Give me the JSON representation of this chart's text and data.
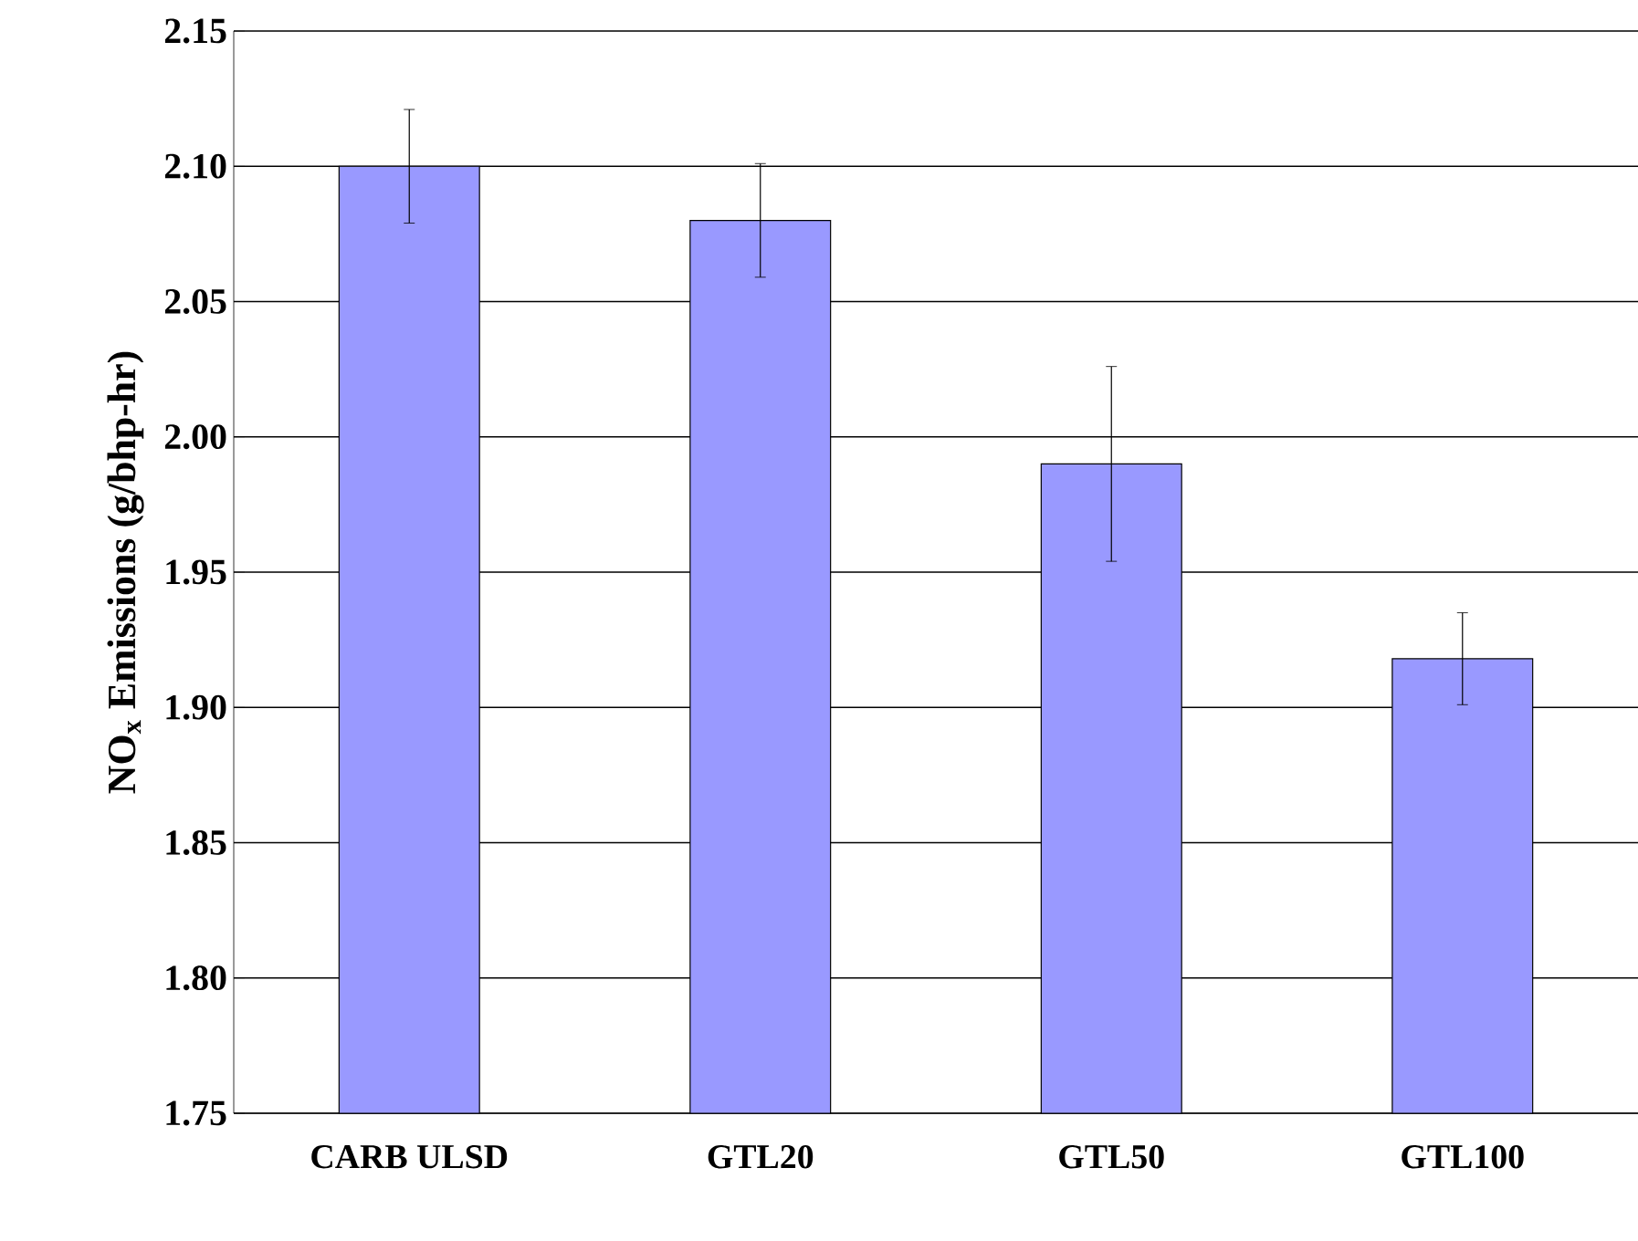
{
  "chart_data": {
    "type": "bar",
    "ylabel": "NO$_{x}$ Emissions (g/bhp-hr)",
    "categories": [
      "CARB ULSD",
      "GTL20",
      "GTL50",
      "GTL100"
    ],
    "values": [
      2.1,
      2.08,
      1.99,
      1.918
    ],
    "errors": [
      0.021,
      0.021,
      0.036,
      0.017
    ],
    "color": "#9999ff",
    "ylim": [
      1.75,
      2.15
    ],
    "yticks": [
      1.75,
      {
        "value": 1.8,
        "label": "1.80"
      },
      1.85,
      {
        "value": 1.9,
        "label": "1.90"
      },
      1.95,
      {
        "value": 2.0,
        "label": "2.00"
      },
      2.05,
      {
        "value": 2.1,
        "label": "2.10"
      },
      2.15
    ],
    "grid": "y"
  }
}
